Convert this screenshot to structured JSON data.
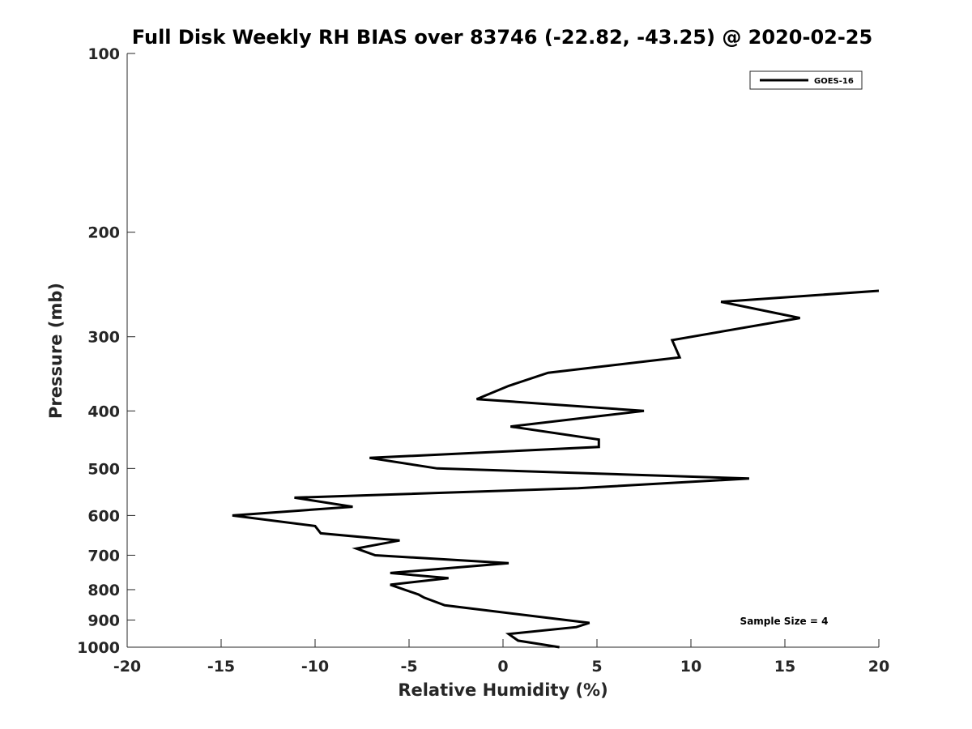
{
  "chart_data": {
    "type": "line",
    "title": "Full Disk Weekly RH BIAS over 83746 (-22.82, -43.25) @ 2020-02-25",
    "xlabel": "Relative Humidity (%)",
    "ylabel": "Pressure (mb)",
    "xlim": [
      -20,
      20
    ],
    "ylim": [
      100,
      1000
    ],
    "yscale": "log",
    "y_reversed": true,
    "grid": false,
    "legend_position": "top-right",
    "xticks": [
      -20,
      -15,
      -10,
      -5,
      0,
      5,
      10,
      15,
      20
    ],
    "xtick_labels": [
      "-20",
      "-15",
      "-10",
      "-5",
      "0",
      "5",
      "10",
      "15",
      "20"
    ],
    "yticks": [
      100,
      200,
      300,
      400,
      500,
      600,
      700,
      800,
      900,
      1000
    ],
    "ytick_labels": [
      "100",
      "200",
      "300",
      "400",
      "500",
      "600",
      "700",
      "800",
      "900",
      "1000"
    ],
    "series": [
      {
        "name": "GOES-16",
        "color": "#000000",
        "points": [
          {
            "x": 3.0,
            "y": 1000
          },
          {
            "x": 0.8,
            "y": 975
          },
          {
            "x": 0.3,
            "y": 950
          },
          {
            "x": 3.9,
            "y": 925
          },
          {
            "x": 4.6,
            "y": 910
          },
          {
            "x": -3.1,
            "y": 850
          },
          {
            "x": -4.2,
            "y": 825
          },
          {
            "x": -4.5,
            "y": 815
          },
          {
            "x": -6.0,
            "y": 785
          },
          {
            "x": -2.9,
            "y": 765
          },
          {
            "x": -6.0,
            "y": 750
          },
          {
            "x": 0.3,
            "y": 722
          },
          {
            "x": -6.8,
            "y": 700
          },
          {
            "x": -7.8,
            "y": 682
          },
          {
            "x": -5.5,
            "y": 661
          },
          {
            "x": -9.7,
            "y": 643
          },
          {
            "x": -10.0,
            "y": 625
          },
          {
            "x": -14.4,
            "y": 600
          },
          {
            "x": -8.0,
            "y": 580
          },
          {
            "x": -11.1,
            "y": 560
          },
          {
            "x": 4.0,
            "y": 540
          },
          {
            "x": 13.1,
            "y": 520
          },
          {
            "x": -3.5,
            "y": 500
          },
          {
            "x": -7.1,
            "y": 480
          },
          {
            "x": 5.1,
            "y": 460
          },
          {
            "x": 5.1,
            "y": 447
          },
          {
            "x": 0.4,
            "y": 425
          },
          {
            "x": 7.5,
            "y": 400
          },
          {
            "x": -1.4,
            "y": 382
          },
          {
            "x": 0.3,
            "y": 363
          },
          {
            "x": 2.4,
            "y": 345
          },
          {
            "x": 9.4,
            "y": 325
          },
          {
            "x": 9.0,
            "y": 304
          },
          {
            "x": 15.8,
            "y": 279
          },
          {
            "x": 11.6,
            "y": 262
          },
          {
            "x": 20.0,
            "y": 251
          }
        ]
      }
    ],
    "annotations": [
      {
        "text": "Sample Size = 4",
        "position": "bottom-right"
      }
    ]
  }
}
